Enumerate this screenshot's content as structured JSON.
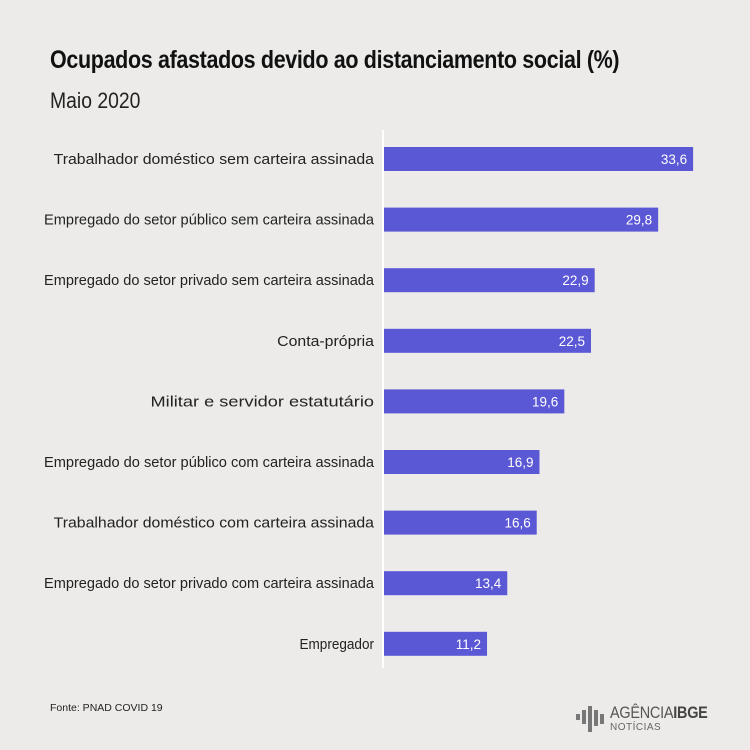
{
  "chart_data": {
    "type": "bar",
    "orientation": "horizontal",
    "title": "Ocupados afastados devido ao distanciamento social (%)",
    "subtitle": "Maio 2020",
    "categories": [
      "Trabalhador doméstico sem carteira assinada",
      "Empregado do setor público sem carteira assinada",
      "Empregado do setor privado sem carteira assinada",
      "Conta-própria",
      "Militar e servidor estatutário",
      "Empregado do setor público com carteira assinada",
      "Trabalhador doméstico com carteira assinada",
      "Empregado do setor privado com carteira assinada",
      "Empregador"
    ],
    "values": [
      33.6,
      29.8,
      22.9,
      22.5,
      19.6,
      16.9,
      16.6,
      13.4,
      11.2
    ],
    "value_labels": [
      "33,6",
      "29,8",
      "22,9",
      "22,5",
      "19,6",
      "16,9",
      "16,6",
      "13,4",
      "11,2"
    ],
    "xlim": [
      0,
      35
    ],
    "bar_color": "#5b58d6",
    "grid": false
  },
  "source": "Fonte: PNAD COVID 19",
  "logo": {
    "main": "AGÊNCIA",
    "bold": "IBGE",
    "sub": "NOTÍCIAS"
  }
}
